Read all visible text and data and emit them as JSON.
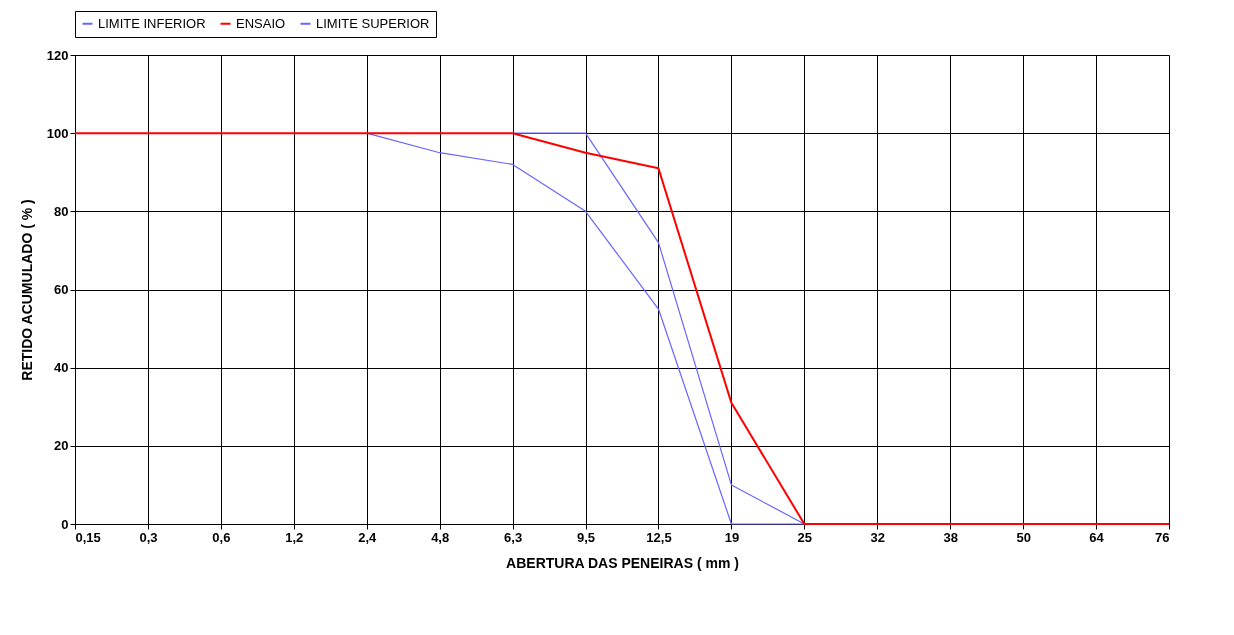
{
  "chart_data": {
    "type": "line",
    "xlabel": "ABERTURA DAS PENEIRAS ( mm )",
    "ylabel": "RETIDO ACUMULADO ( % )",
    "categories": [
      "0,15",
      "0,3",
      "0,6",
      "1,2",
      "2,4",
      "4,8",
      "6,3",
      "9,5",
      "12,5",
      "19",
      "25",
      "32",
      "38",
      "50",
      "64",
      "76"
    ],
    "series": [
      {
        "name": "LIMITE INFERIOR",
        "color": "#6666ff",
        "values": [
          null,
          null,
          null,
          null,
          100,
          95,
          92,
          80,
          55,
          0,
          0,
          null,
          null,
          null,
          null,
          null
        ]
      },
      {
        "name": "ENSAIO",
        "color": "#ff0000",
        "values": [
          100,
          100,
          100,
          100,
          100,
          100,
          100,
          95,
          91,
          31,
          0,
          0,
          0,
          0,
          0,
          0
        ]
      },
      {
        "name": "LIMITE SUPERIOR",
        "color": "#6666ff",
        "values": [
          null,
          null,
          null,
          null,
          null,
          null,
          100,
          100,
          72,
          10,
          0,
          null,
          null,
          null,
          null,
          null
        ]
      }
    ],
    "ylim": [
      0,
      120
    ],
    "yticks": [
      0,
      20,
      40,
      60,
      80,
      100,
      120
    ],
    "grid": true,
    "legend": "top",
    "marker": "none",
    "line_style": "solid"
  }
}
